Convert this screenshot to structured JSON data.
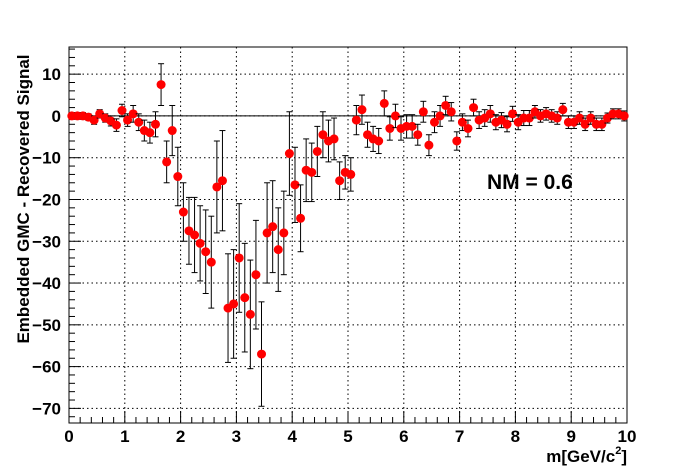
{
  "chart_data": {
    "type": "scatter",
    "title": "",
    "xlabel": "m[GeV/c",
    "xlabel_sup": "2",
    "xlabel_close": "]",
    "ylabel": "Embedded GMC - Recovered Signal",
    "annotation": "NM = 0.6",
    "xlim": [
      0,
      10
    ],
    "ylim": [
      -73.5,
      16.5
    ],
    "x_tick_labels": [
      "0",
      "1",
      "2",
      "3",
      "4",
      "5",
      "6",
      "7",
      "8",
      "9",
      "10"
    ],
    "y_tick_labels": [
      "10",
      "0",
      "−10",
      "−20",
      "−30",
      "−40",
      "−50",
      "−60",
      "−70"
    ],
    "y_tick_values": [
      10,
      0,
      -10,
      -20,
      -30,
      -40,
      -50,
      -60,
      -70
    ],
    "grid": true,
    "reference_line": 0,
    "marker_color": "#ff0000",
    "series": [
      {
        "points": [
          [
            0.05,
            0.0,
            0.8
          ],
          [
            0.15,
            0.0,
            0.8
          ],
          [
            0.25,
            0.0,
            0.8
          ],
          [
            0.35,
            -0.3,
            0.8
          ],
          [
            0.45,
            -1.0,
            1.0
          ],
          [
            0.55,
            0.5,
            1.0
          ],
          [
            0.65,
            -0.5,
            1.0
          ],
          [
            0.75,
            -1.2,
            1.2
          ],
          [
            0.85,
            -2.2,
            1.5
          ],
          [
            0.95,
            1.3,
            1.5
          ],
          [
            1.05,
            -1.0,
            1.5
          ],
          [
            1.15,
            0.5,
            2.0
          ],
          [
            1.25,
            -1.5,
            2.0
          ],
          [
            1.35,
            -3.5,
            2.5
          ],
          [
            1.45,
            -4.0,
            2.5
          ],
          [
            1.55,
            -2.0,
            3.0
          ],
          [
            1.65,
            7.5,
            5.0
          ],
          [
            1.75,
            -11.0,
            5.0
          ],
          [
            1.85,
            -3.5,
            6.0
          ],
          [
            1.95,
            -14.5,
            7.0
          ],
          [
            2.05,
            -23.0,
            7.0
          ],
          [
            2.15,
            -27.5,
            8.0
          ],
          [
            2.25,
            -28.5,
            9.0
          ],
          [
            2.35,
            -30.5,
            9.0
          ],
          [
            2.45,
            -32.5,
            10.0
          ],
          [
            2.55,
            -35.0,
            11.0
          ],
          [
            2.65,
            -17.0,
            11.0
          ],
          [
            2.75,
            -15.5,
            12.0
          ],
          [
            2.85,
            -46.0,
            13.0
          ],
          [
            2.95,
            -45.0,
            13.0
          ],
          [
            3.05,
            -34.0,
            13.0
          ],
          [
            3.15,
            -43.5,
            13.0
          ],
          [
            3.25,
            -47.5,
            13.0
          ],
          [
            3.35,
            -38.0,
            13.0
          ],
          [
            3.45,
            -57.0,
            12.5
          ],
          [
            3.55,
            -28.0,
            12.0
          ],
          [
            3.65,
            -26.5,
            11.0
          ],
          [
            3.75,
            -32.0,
            10.0
          ],
          [
            3.85,
            -28.0,
            10.0
          ],
          [
            3.95,
            -9.0,
            10.0
          ],
          [
            4.05,
            -16.5,
            9.0
          ],
          [
            4.15,
            -24.5,
            8.0
          ],
          [
            4.25,
            -13.0,
            7.5
          ],
          [
            4.35,
            -13.5,
            7.0
          ],
          [
            4.45,
            -8.5,
            6.0
          ],
          [
            4.55,
            -4.5,
            5.5
          ],
          [
            4.65,
            -6.0,
            5.0
          ],
          [
            4.75,
            -5.5,
            5.0
          ],
          [
            4.85,
            -15.5,
            4.5
          ],
          [
            4.95,
            -13.5,
            4.0
          ],
          [
            5.05,
            -14.0,
            4.0
          ],
          [
            5.15,
            -1.0,
            3.5
          ],
          [
            5.25,
            1.5,
            3.5
          ],
          [
            5.35,
            -4.5,
            3.0
          ],
          [
            5.45,
            -5.5,
            3.0
          ],
          [
            5.55,
            -6.0,
            3.0
          ],
          [
            5.65,
            3.0,
            3.0
          ],
          [
            5.75,
            -3.0,
            2.8
          ],
          [
            5.85,
            0.0,
            2.8
          ],
          [
            5.95,
            -3.0,
            2.8
          ],
          [
            6.05,
            -2.5,
            2.8
          ],
          [
            6.15,
            -2.5,
            2.8
          ],
          [
            6.25,
            -4.5,
            2.5
          ],
          [
            6.35,
            1.0,
            2.5
          ],
          [
            6.45,
            -7.0,
            2.5
          ],
          [
            6.55,
            -1.5,
            2.5
          ],
          [
            6.65,
            0.0,
            2.5
          ],
          [
            6.75,
            2.5,
            2.2
          ],
          [
            6.85,
            1.0,
            2.2
          ],
          [
            6.95,
            -6.0,
            2.2
          ],
          [
            7.05,
            -1.5,
            2.0
          ],
          [
            7.15,
            -3.0,
            2.0
          ],
          [
            7.25,
            2.0,
            2.0
          ],
          [
            7.35,
            -1.0,
            2.0
          ],
          [
            7.45,
            -0.5,
            2.0
          ],
          [
            7.55,
            0.5,
            2.0
          ],
          [
            7.65,
            -1.5,
            1.8
          ],
          [
            7.75,
            -1.0,
            1.8
          ],
          [
            7.85,
            -2.0,
            1.8
          ],
          [
            7.95,
            0.5,
            1.8
          ],
          [
            8.05,
            -1.5,
            1.8
          ],
          [
            8.15,
            -0.5,
            1.8
          ],
          [
            8.25,
            -0.5,
            1.8
          ],
          [
            8.35,
            1.0,
            1.5
          ],
          [
            8.45,
            0.0,
            1.5
          ],
          [
            8.55,
            0.5,
            1.5
          ],
          [
            8.65,
            0.0,
            1.5
          ],
          [
            8.75,
            -0.5,
            1.5
          ],
          [
            8.85,
            1.5,
            1.5
          ],
          [
            8.95,
            -1.5,
            1.5
          ],
          [
            9.05,
            -1.5,
            1.5
          ],
          [
            9.15,
            -0.5,
            1.5
          ],
          [
            9.25,
            -2.0,
            1.5
          ],
          [
            9.35,
            -0.5,
            1.5
          ],
          [
            9.45,
            -2.0,
            1.5
          ],
          [
            9.55,
            -2.0,
            1.5
          ],
          [
            9.65,
            -0.5,
            1.2
          ],
          [
            9.75,
            0.5,
            1.2
          ],
          [
            9.85,
            0.5,
            1.2
          ],
          [
            9.95,
            0.0,
            1.2
          ]
        ]
      }
    ]
  }
}
